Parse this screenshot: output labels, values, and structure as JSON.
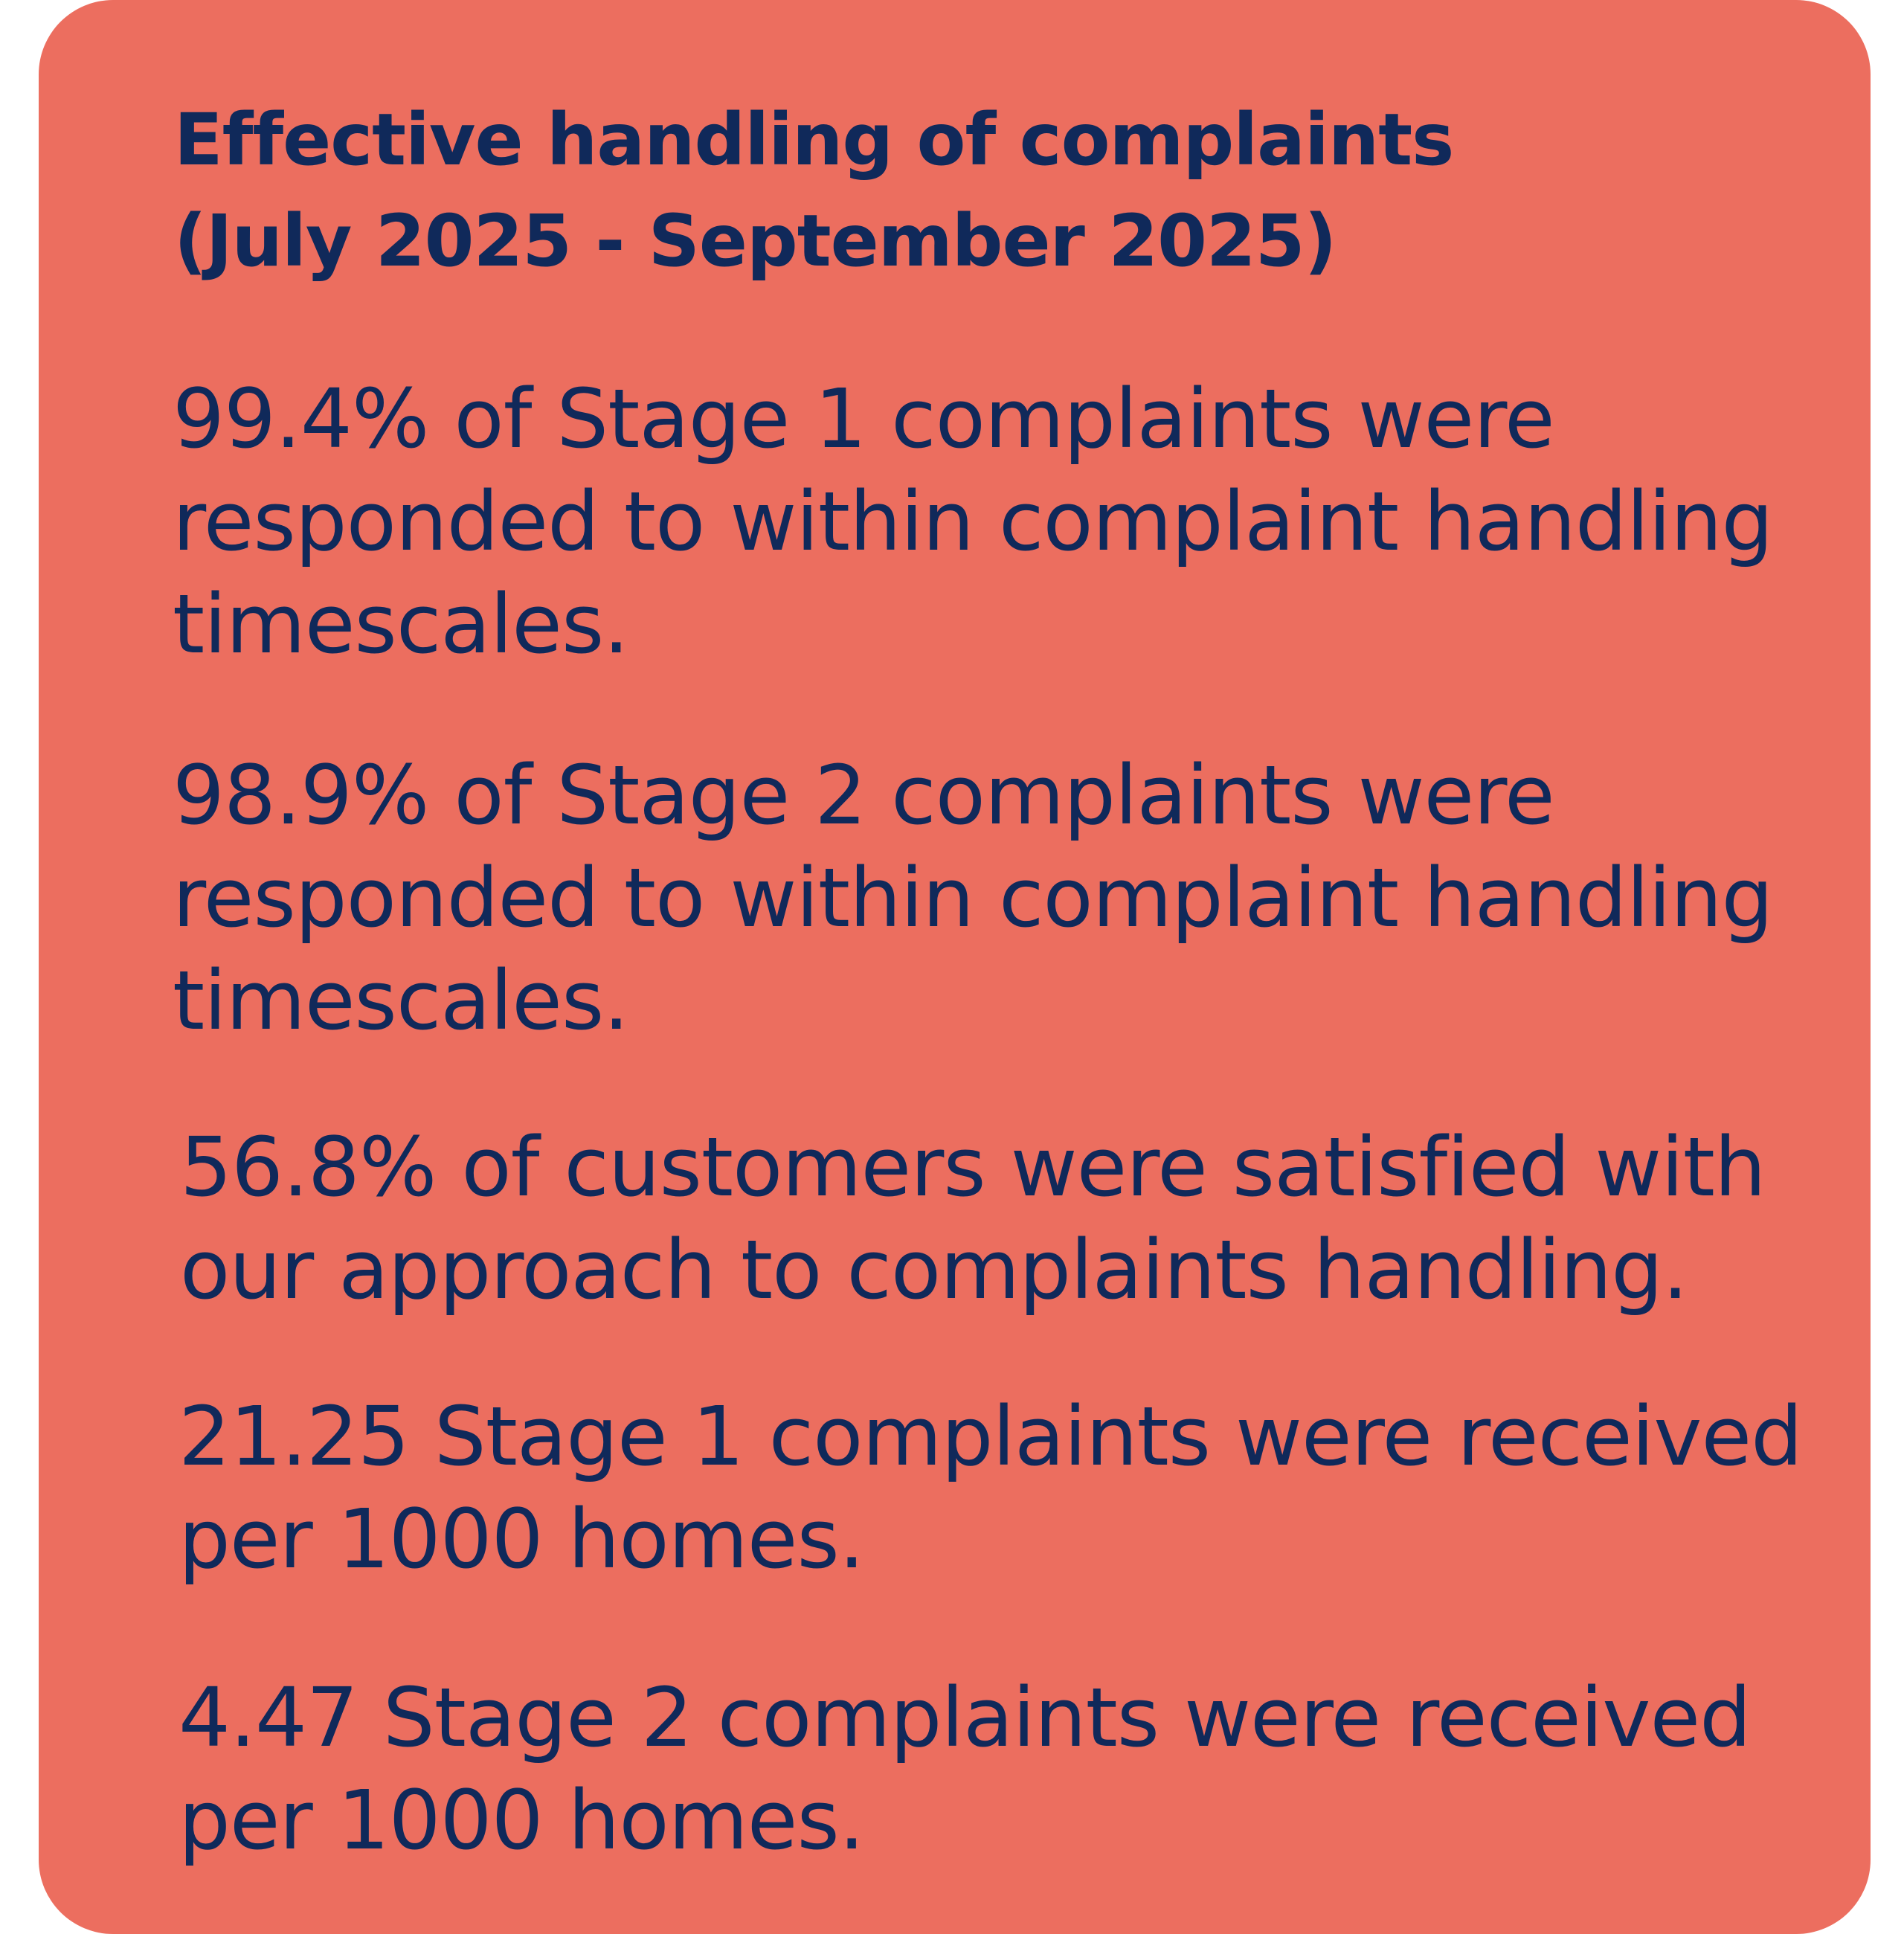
{
  "card": {
    "background_color": "#ec6e5f",
    "text_color": "#10295a"
  },
  "title": {
    "line1": "Effective handling of complaints",
    "line2": "(July 2025 - September 2025)"
  },
  "stats": [
    {
      "line1": "99.4% of Stage 1 complaints were",
      "line2": "responded to within complaint handling",
      "line3": "timescales."
    },
    {
      "line1": "98.9% of Stage 2 complaints were",
      "line2": "responded to within complaint handling",
      "line3": "timescales."
    },
    {
      "line1": "56.8% of customers were satisfied with",
      "line2": "our approach to complaints handling."
    },
    {
      "line1": "21.25 Stage 1 complaints were received",
      "line2": "per 1000 homes."
    },
    {
      "line1": "4.47 Stage 2 complaints were received",
      "line2": "per 1000 homes."
    }
  ]
}
